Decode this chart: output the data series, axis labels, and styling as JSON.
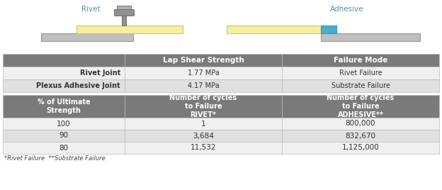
{
  "bg_color": "#ffffff",
  "header_color": "#7a7a7a",
  "header_text_color": "#ffffff",
  "row_color_1": "#f0f0f0",
  "row_color_2": "#e0e0e0",
  "border_color": "#bbbbbb",
  "table1_headers": [
    "",
    "Lap Shear Strength",
    "Failure Mode"
  ],
  "table1_rows": [
    [
      "Rivet Joint",
      "1.77 MPa",
      "Rivet Failure"
    ],
    [
      "Plexus Adhesive Joint",
      "4.17 MPa",
      "Substrate Failure"
    ]
  ],
  "table2_headers": [
    "% of Ultimate\nStrength",
    "Number of cycles\nto Failure\nRIVET*",
    "Number of cycles\nto Failure\nADHESIVE**"
  ],
  "table2_rows": [
    [
      "100",
      "1",
      "800,000"
    ],
    [
      "90",
      "3,684",
      "832,670"
    ],
    [
      "80",
      "11,532",
      "1,125,000"
    ]
  ],
  "footnote": "*Rivet Failure  **Substrate Failure",
  "rivet_label": "Rivet",
  "adhesive_label": "Adhesive",
  "yellow_color": "#f5f0a0",
  "blue_color": "#4aadcf",
  "plate_gray": "#c0c0c0",
  "plate_edge": "#999999",
  "rivet_body": "#909090",
  "rivet_edge": "#666666"
}
